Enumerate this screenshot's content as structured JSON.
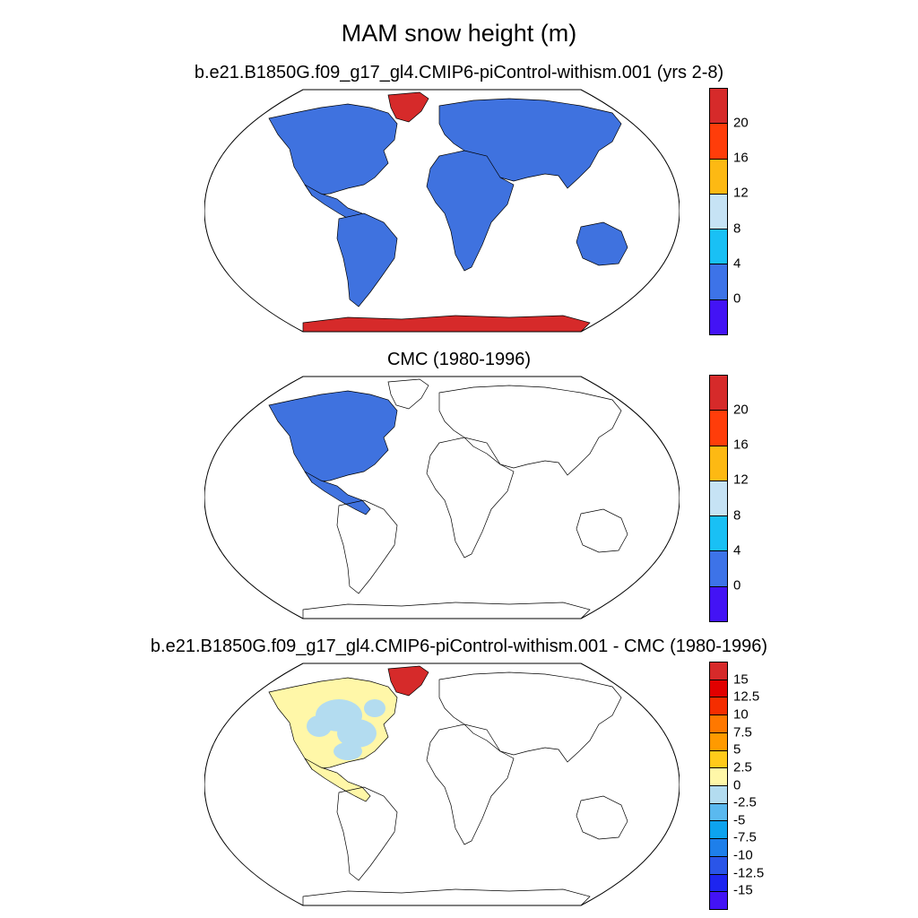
{
  "main_title": "MAM snow height (m)",
  "panels": [
    {
      "title": "b.e21.B1850G.f09_g17_gl4.CMIP6-piControl-withism.001 (yrs 2-8)",
      "colorbar": {
        "labels": [
          "20",
          "16",
          "12",
          "8",
          "4",
          "0"
        ],
        "colors": [
          "#d62a2a",
          "#ff3d0a",
          "#fdb913",
          "#c6e3f5",
          "#19c0f5",
          "#3d73e8",
          "#4313f5"
        ]
      },
      "fill": {
        "land": "#3f72df",
        "ice": "#d62a2a"
      }
    },
    {
      "title": "CMC (1980-1996)",
      "colorbar": {
        "labels": [
          "20",
          "16",
          "12",
          "8",
          "4",
          "0"
        ],
        "colors": [
          "#d62a2a",
          "#ff3d0a",
          "#fdb913",
          "#c6e3f5",
          "#19c0f5",
          "#3d73e8",
          "#4313f5"
        ]
      },
      "fill": {
        "land": "#3f72df"
      }
    },
    {
      "title": "b.e21.B1850G.f09_g17_gl4.CMIP6-piControl-withism.001 - CMC (1980-1996)",
      "colorbar": {
        "labels": [
          "15",
          "12.5",
          "10",
          "7.5",
          "5",
          "2.5",
          "0",
          "-2.5",
          "-5",
          "-7.5",
          "-10",
          "-12.5",
          "-15"
        ],
        "colors": [
          "#d62a2a",
          "#e10000",
          "#f52d00",
          "#ff7800",
          "#ff9a00",
          "#ffca1a",
          "#fff7a8",
          "#b3dcf0",
          "#5ab9ef",
          "#0da3ee",
          "#1e7fea",
          "#2a55e8",
          "#1d25f0",
          "#4313f5"
        ]
      },
      "fill": {
        "pos": "#fff7a8",
        "neg": "#b3dcf0",
        "ice": "#d62a2a"
      }
    }
  ]
}
